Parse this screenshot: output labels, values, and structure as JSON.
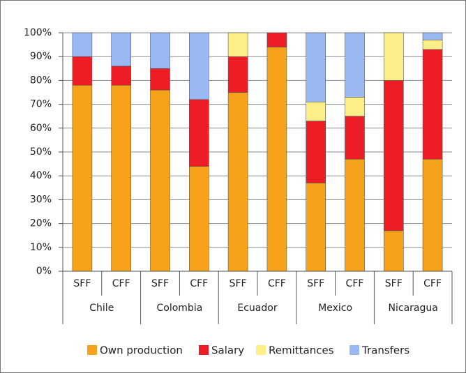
{
  "chart_data": {
    "type": "stacked_bar",
    "categories": [
      "SFF",
      "CFF",
      "SFF",
      "CFF",
      "SFF",
      "CFF",
      "SFF",
      "CFF",
      "SFF",
      "CFF"
    ],
    "groups": [
      "Chile",
      "Colombia",
      "Ecuador",
      "Mexico",
      "Nicaragua"
    ],
    "series": [
      {
        "name": "Own production",
        "color": "#f7a21b",
        "values": [
          78,
          78,
          76,
          44,
          75,
          94,
          37,
          47,
          17,
          47
        ]
      },
      {
        "name": "Salary",
        "color": "#ee1c25",
        "values": [
          12,
          8,
          9,
          28,
          15,
          6,
          26,
          18,
          63,
          46
        ]
      },
      {
        "name": "Remittances",
        "color": "#fcef88",
        "values": [
          0,
          0,
          0,
          0,
          10,
          0,
          8,
          8,
          20,
          4
        ]
      },
      {
        "name": "Transfers",
        "color": "#9ab9f4",
        "values": [
          10,
          14,
          15,
          28,
          0,
          0,
          29,
          27,
          0,
          3
        ]
      }
    ],
    "ylim": [
      0,
      100
    ],
    "yticks": [
      {
        "value": 0,
        "label": "0%"
      },
      {
        "value": 10,
        "label": "10%"
      },
      {
        "value": 20,
        "label": "20%"
      },
      {
        "value": 30,
        "label": "30%"
      },
      {
        "value": 40,
        "label": "40%"
      },
      {
        "value": 50,
        "label": "50%"
      },
      {
        "value": 60,
        "label": "60%"
      },
      {
        "value": 70,
        "label": "70%"
      },
      {
        "value": 80,
        "label": "80%"
      },
      {
        "value": 90,
        "label": "90%"
      },
      {
        "value": 100,
        "label": "100%"
      }
    ],
    "grid": true,
    "legend": "bottom"
  }
}
